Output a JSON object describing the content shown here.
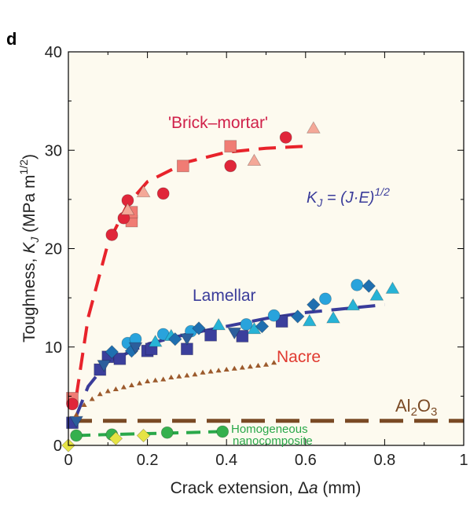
{
  "panel_label": "d",
  "colors": {
    "brick_mortar": "#e8232b",
    "lamellar": "#3a3c9a",
    "nacre": "#d93a2b",
    "al2o3": "#7a4a25",
    "homogeneous": "#2aa84a",
    "plot_bg": "#fdfaef"
  },
  "annotations": {
    "brick_mortar": "'Brick–mortar'",
    "lamellar": "Lamellar",
    "nacre": "Nacre",
    "al2o3": "Al2O3",
    "homogeneous_line1": "Homogeneous",
    "homogeneous_line2": "nanocomposite",
    "equation": "KJ = (J·E)1/2"
  },
  "chart_data": {
    "type": "scatter",
    "xlabel": "Crack extension, Δa (mm)",
    "ylabel": "Toughness, KJ (MPa m1/2)",
    "xlim": [
      0,
      1
    ],
    "ylim": [
      0,
      40
    ],
    "xticks": [
      0,
      0.2,
      0.4,
      0.6,
      0.8,
      1
    ],
    "xtick_labels": [
      "0",
      "0.2",
      "0.4",
      "0.6",
      "0.8",
      "1"
    ],
    "yticks": [
      0,
      10,
      20,
      30,
      40
    ],
    "ytick_labels": [
      "0",
      "10",
      "20",
      "30",
      "40"
    ],
    "grid": false,
    "series": [
      {
        "name": "'Brick–mortar'",
        "color": "#e8232b",
        "fit": [
          [
            0.02,
            5
          ],
          [
            0.05,
            13
          ],
          [
            0.1,
            20.5
          ],
          [
            0.15,
            24.5
          ],
          [
            0.2,
            26.8
          ],
          [
            0.3,
            28.8
          ],
          [
            0.4,
            29.8
          ],
          [
            0.5,
            30.2
          ],
          [
            0.6,
            30.4
          ]
        ],
        "markers": [
          {
            "shape": "square",
            "fill": "#f07c74",
            "points": [
              [
                0.01,
                4.8
              ],
              [
                0.16,
                22.8
              ],
              [
                0.16,
                23.7
              ],
              [
                0.29,
                28.4
              ],
              [
                0.41,
                30.4
              ]
            ]
          },
          {
            "shape": "circle",
            "fill": "#e0263a",
            "points": [
              [
                0.01,
                4.2
              ],
              [
                0.11,
                21.4
              ],
              [
                0.14,
                23.1
              ],
              [
                0.15,
                24.9
              ],
              [
                0.24,
                25.6
              ],
              [
                0.41,
                28.4
              ],
              [
                0.55,
                31.3
              ]
            ]
          },
          {
            "shape": "triangle",
            "fill": "#f4a898",
            "points": [
              [
                0.15,
                23.9
              ],
              [
                0.19,
                25.7
              ],
              [
                0.47,
                28.9
              ],
              [
                0.62,
                32.2
              ]
            ]
          }
        ]
      },
      {
        "name": "Lamellar",
        "color": "#3a3c9a",
        "fit": [
          [
            0.02,
            3
          ],
          [
            0.05,
            6
          ],
          [
            0.1,
            8.5
          ],
          [
            0.2,
            10.3
          ],
          [
            0.3,
            11.3
          ],
          [
            0.4,
            12.1
          ],
          [
            0.5,
            12.9
          ],
          [
            0.6,
            13.5
          ],
          [
            0.7,
            13.9
          ],
          [
            0.8,
            14.3
          ]
        ],
        "markers": [
          {
            "shape": "square",
            "fill": "#3b3f9c",
            "points": [
              [
                0.01,
                2.3
              ],
              [
                0.08,
                7.7
              ],
              [
                0.1,
                9.0
              ],
              [
                0.13,
                8.8
              ],
              [
                0.2,
                9.6
              ],
              [
                0.21,
                9.8
              ],
              [
                0.3,
                9.8
              ],
              [
                0.36,
                11.2
              ],
              [
                0.44,
                11.1
              ],
              [
                0.54,
                12.6
              ]
            ]
          },
          {
            "shape": "circle",
            "fill": "#29a3dc",
            "points": [
              [
                0.15,
                10.4
              ],
              [
                0.17,
                10.8
              ],
              [
                0.24,
                11.3
              ],
              [
                0.31,
                11.6
              ],
              [
                0.45,
                12.3
              ],
              [
                0.52,
                13.2
              ],
              [
                0.65,
                14.9
              ],
              [
                0.73,
                16.3
              ]
            ]
          },
          {
            "shape": "triangle",
            "fill": "#27b3d6",
            "points": [
              [
                0.22,
                10.5
              ],
              [
                0.26,
                11.1
              ],
              [
                0.38,
                12.2
              ],
              [
                0.47,
                11.8
              ],
              [
                0.61,
                12.6
              ],
              [
                0.67,
                12.9
              ],
              [
                0.72,
                14.2
              ],
              [
                0.78,
                15.2
              ],
              [
                0.82,
                15.9
              ]
            ]
          },
          {
            "shape": "diamond",
            "fill": "#1f6fb0",
            "points": [
              [
                0.11,
                9.5
              ],
              [
                0.16,
                9.6
              ],
              [
                0.27,
                10.8
              ],
              [
                0.33,
                11.9
              ],
              [
                0.49,
                12.1
              ],
              [
                0.58,
                13.1
              ],
              [
                0.62,
                14.3
              ],
              [
                0.76,
                16.2
              ]
            ]
          },
          {
            "shape": "triangle-down",
            "fill": "#2c5e9c",
            "points": [
              [
                0.02,
                2.5
              ],
              [
                0.09,
                8.2
              ],
              [
                0.17,
                10.0
              ],
              [
                0.3,
                10.9
              ],
              [
                0.42,
                11.5
              ]
            ]
          }
        ]
      },
      {
        "name": "Nacre",
        "color": "#a0522d",
        "fit": [],
        "markers": [
          {
            "shape": "triangle",
            "fill": "#9c5a2c",
            "size": "small",
            "points": [
              [
                0.02,
                3.1
              ],
              [
                0.04,
                4.1
              ],
              [
                0.06,
                4.7
              ],
              [
                0.08,
                5.2
              ],
              [
                0.1,
                5.5
              ],
              [
                0.12,
                5.7
              ],
              [
                0.14,
                5.9
              ],
              [
                0.16,
                6.1
              ],
              [
                0.18,
                6.3
              ],
              [
                0.2,
                6.5
              ],
              [
                0.22,
                6.6
              ],
              [
                0.24,
                6.7
              ],
              [
                0.26,
                6.9
              ],
              [
                0.28,
                7.0
              ],
              [
                0.3,
                7.1
              ],
              [
                0.32,
                7.2
              ],
              [
                0.34,
                7.4
              ],
              [
                0.36,
                7.5
              ],
              [
                0.38,
                7.6
              ],
              [
                0.4,
                7.7
              ],
              [
                0.42,
                7.8
              ],
              [
                0.44,
                7.9
              ],
              [
                0.46,
                8.0
              ],
              [
                0.48,
                8.1
              ],
              [
                0.5,
                8.2
              ],
              [
                0.52,
                8.4
              ]
            ]
          }
        ]
      },
      {
        "name": "Homogeneous nanocomposite",
        "color": "#2aa84a",
        "fit": [
          [
            0.02,
            1.0
          ],
          [
            0.1,
            1.1
          ],
          [
            0.2,
            1.2
          ],
          [
            0.3,
            1.3
          ],
          [
            0.38,
            1.4
          ]
        ],
        "markers": [
          {
            "shape": "circle",
            "fill": "#35b04d",
            "points": [
              [
                0.02,
                1.0
              ],
              [
                0.11,
                1.1
              ],
              [
                0.25,
                1.3
              ],
              [
                0.39,
                1.4
              ]
            ]
          },
          {
            "shape": "diamond",
            "fill": "#e6e344",
            "points": [
              [
                0.0,
                0.0
              ],
              [
                0.12,
                0.7
              ],
              [
                0.19,
                1.0
              ]
            ]
          }
        ]
      },
      {
        "name": "Al2O3",
        "color": "#7a4a25",
        "fit": [
          [
            0.0,
            2.5
          ],
          [
            1.0,
            2.5
          ]
        ],
        "markers": []
      }
    ]
  }
}
